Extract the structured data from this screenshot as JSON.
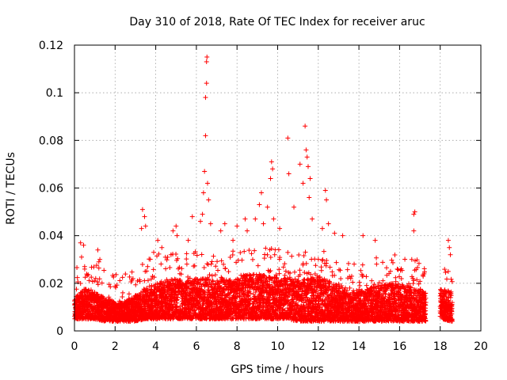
{
  "chart_data": {
    "type": "scatter",
    "title": "Day 310 of 2018, Rate Of TEC Index for receiver aruc",
    "xlabel": "GPS time / hours",
    "ylabel": "ROTI / TECUs",
    "xlim": [
      0,
      20
    ],
    "ylim": [
      0,
      0.12
    ],
    "xticks": [
      "0",
      "2",
      "4",
      "6",
      "8",
      "10",
      "12",
      "14",
      "16",
      "18",
      "20"
    ],
    "yticks": [
      "0",
      "0.02",
      "0.04",
      "0.06",
      "0.08",
      "0.1",
      "0.12"
    ],
    "grid": true,
    "marker": "+",
    "color": "#ff0000",
    "baseline_envelope": {
      "x": [
        0,
        0.5,
        1,
        1.5,
        2,
        2.5,
        3,
        3.5,
        4,
        4.5,
        5,
        5.5,
        6,
        6.5,
        7,
        7.5,
        8,
        8.5,
        9,
        9.5,
        10,
        10.5,
        11,
        11.5,
        12,
        12.5,
        13,
        13.5,
        14,
        14.5,
        15,
        15.5,
        16,
        16.5,
        17,
        17.3,
        17.8,
        18,
        18.5,
        18.6
      ],
      "low": [
        0.005,
        0.005,
        0.005,
        0.004,
        0.004,
        0.004,
        0.004,
        0.005,
        0.005,
        0.005,
        0.005,
        0.005,
        0.005,
        0.005,
        0.005,
        0.005,
        0.005,
        0.005,
        0.005,
        0.005,
        0.005,
        0.005,
        0.004,
        0.004,
        0.004,
        0.004,
        0.004,
        0.004,
        0.004,
        0.004,
        0.004,
        0.004,
        0.004,
        0.004,
        0.004,
        0.004,
        null,
        0.005,
        0.004,
        0.004
      ],
      "high": [
        0.014,
        0.018,
        0.016,
        0.014,
        0.012,
        0.012,
        0.015,
        0.018,
        0.02,
        0.021,
        0.022,
        0.021,
        0.022,
        0.022,
        0.021,
        0.022,
        0.022,
        0.024,
        0.024,
        0.023,
        0.023,
        0.022,
        0.021,
        0.022,
        0.023,
        0.021,
        0.019,
        0.017,
        0.017,
        0.018,
        0.019,
        0.02,
        0.02,
        0.019,
        0.018,
        0.016,
        null,
        0.018,
        0.017,
        0.016
      ]
    },
    "notable_points": [
      {
        "x": 0.1,
        "y": 0.012
      },
      {
        "x": 0.3,
        "y": 0.037
      },
      {
        "x": 0.35,
        "y": 0.031
      },
      {
        "x": 0.45,
        "y": 0.036
      },
      {
        "x": 0.5,
        "y": 0.027
      },
      {
        "x": 1.15,
        "y": 0.034
      },
      {
        "x": 1.2,
        "y": 0.029
      },
      {
        "x": 1.25,
        "y": 0.03
      },
      {
        "x": 3.3,
        "y": 0.043
      },
      {
        "x": 3.35,
        "y": 0.051
      },
      {
        "x": 3.45,
        "y": 0.048
      },
      {
        "x": 3.5,
        "y": 0.044
      },
      {
        "x": 3.6,
        "y": 0.027
      },
      {
        "x": 3.9,
        "y": 0.033
      },
      {
        "x": 4.1,
        "y": 0.038
      },
      {
        "x": 4.3,
        "y": 0.035
      },
      {
        "x": 4.85,
        "y": 0.042
      },
      {
        "x": 5.0,
        "y": 0.044
      },
      {
        "x": 5.05,
        "y": 0.04
      },
      {
        "x": 5.6,
        "y": 0.038
      },
      {
        "x": 5.8,
        "y": 0.048
      },
      {
        "x": 6.2,
        "y": 0.046
      },
      {
        "x": 6.3,
        "y": 0.049
      },
      {
        "x": 6.35,
        "y": 0.058
      },
      {
        "x": 6.4,
        "y": 0.067
      },
      {
        "x": 6.45,
        "y": 0.082
      },
      {
        "x": 6.45,
        "y": 0.098
      },
      {
        "x": 6.5,
        "y": 0.104
      },
      {
        "x": 6.5,
        "y": 0.113
      },
      {
        "x": 6.52,
        "y": 0.115
      },
      {
        "x": 6.55,
        "y": 0.062
      },
      {
        "x": 6.6,
        "y": 0.055
      },
      {
        "x": 6.7,
        "y": 0.045
      },
      {
        "x": 7.2,
        "y": 0.042
      },
      {
        "x": 7.4,
        "y": 0.045
      },
      {
        "x": 7.8,
        "y": 0.038
      },
      {
        "x": 8.0,
        "y": 0.044
      },
      {
        "x": 8.4,
        "y": 0.047
      },
      {
        "x": 8.5,
        "y": 0.042
      },
      {
        "x": 8.9,
        "y": 0.047
      },
      {
        "x": 9.1,
        "y": 0.053
      },
      {
        "x": 9.2,
        "y": 0.058
      },
      {
        "x": 9.3,
        "y": 0.045
      },
      {
        "x": 9.5,
        "y": 0.052
      },
      {
        "x": 9.65,
        "y": 0.064
      },
      {
        "x": 9.7,
        "y": 0.071
      },
      {
        "x": 9.75,
        "y": 0.068
      },
      {
        "x": 9.8,
        "y": 0.047
      },
      {
        "x": 10.1,
        "y": 0.043
      },
      {
        "x": 10.5,
        "y": 0.081
      },
      {
        "x": 10.55,
        "y": 0.066
      },
      {
        "x": 10.8,
        "y": 0.052
      },
      {
        "x": 11.1,
        "y": 0.07
      },
      {
        "x": 11.25,
        "y": 0.062
      },
      {
        "x": 11.35,
        "y": 0.086
      },
      {
        "x": 11.4,
        "y": 0.076
      },
      {
        "x": 11.45,
        "y": 0.073
      },
      {
        "x": 11.5,
        "y": 0.069
      },
      {
        "x": 11.55,
        "y": 0.056
      },
      {
        "x": 11.6,
        "y": 0.064
      },
      {
        "x": 11.7,
        "y": 0.047
      },
      {
        "x": 12.2,
        "y": 0.043
      },
      {
        "x": 12.35,
        "y": 0.059
      },
      {
        "x": 12.4,
        "y": 0.055
      },
      {
        "x": 12.5,
        "y": 0.045
      },
      {
        "x": 12.8,
        "y": 0.041
      },
      {
        "x": 13.2,
        "y": 0.04
      },
      {
        "x": 14.2,
        "y": 0.04
      },
      {
        "x": 14.8,
        "y": 0.038
      },
      {
        "x": 16.7,
        "y": 0.049
      },
      {
        "x": 16.75,
        "y": 0.05
      },
      {
        "x": 16.7,
        "y": 0.042
      },
      {
        "x": 16.6,
        "y": 0.03
      },
      {
        "x": 18.4,
        "y": 0.038
      },
      {
        "x": 18.45,
        "y": 0.035
      },
      {
        "x": 18.5,
        "y": 0.032
      }
    ]
  }
}
